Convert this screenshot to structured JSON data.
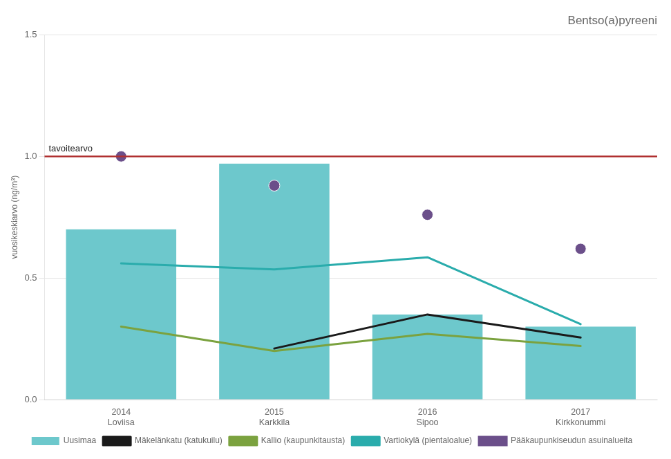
{
  "chart_data": {
    "type": "bar",
    "title": "Bentso(a)pyreeni",
    "y_label": "vuosikeskiarvo (ng/m³)",
    "categories": [
      [
        "2014",
        "Loviisa"
      ],
      [
        "2015",
        "Karkkila"
      ],
      [
        "2016",
        "Sipoo"
      ],
      [
        "2017",
        "Kirkkonummi"
      ]
    ],
    "series": [
      {
        "name": "Uusimaa",
        "type": "bar",
        "color": "#6DC8CC",
        "values": [
          0.7,
          0.97,
          0.35,
          0.3
        ]
      },
      {
        "name": "Mäkelänkatu (katukuilu)",
        "type": "line",
        "color": "#1a1a1a",
        "values": [
          null,
          0.21,
          0.35,
          0.255
        ]
      },
      {
        "name": "Kallio (kaupunkitausta)",
        "type": "line",
        "color": "#7BA23F",
        "values": [
          0.3,
          0.2,
          0.27,
          0.22
        ]
      },
      {
        "name": "Vartiokylä (pientaloalue)",
        "type": "line",
        "color": "#2AACAC",
        "values": [
          0.56,
          0.535,
          0.585,
          0.31
        ]
      },
      {
        "name": "Pääkaupunkiseudun asuinalueita",
        "type": "scatter",
        "marker": "circle",
        "color": "#6B4F8A",
        "values": [
          1.0,
          0.88,
          0.76,
          0.62
        ]
      }
    ],
    "target": {
      "label": "tavoitearvo",
      "value": 1.0,
      "color": "#B03030"
    },
    "ylim": [
      0.0,
      1.5
    ],
    "yticks": [
      {
        "value": 0.0,
        "label": "0.0"
      },
      0.5,
      {
        "value": 1.0,
        "label": "1.0"
      },
      1.5
    ],
    "grid": true,
    "legend": "bottom"
  }
}
